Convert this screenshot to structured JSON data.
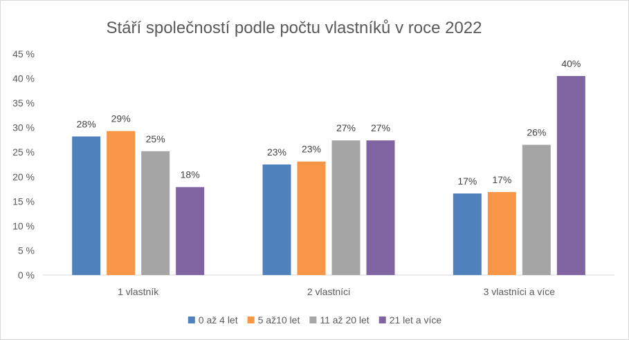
{
  "chart_data": {
    "type": "bar",
    "title": "Stáří společností podle počtu vlastníků v roce 2022",
    "categories": [
      "1 vlastník",
      "2 vlastníci",
      "3 vlastníci a více"
    ],
    "series": [
      {
        "name": "0 až 4 let",
        "color": "#4f81bd",
        "values": [
          28.2,
          22.5,
          16.6
        ],
        "labels": [
          "28%",
          "23%",
          "17%"
        ]
      },
      {
        "name": "5 až10 let",
        "color": "#f79646",
        "values": [
          29.3,
          23.1,
          16.9
        ],
        "labels": [
          "29%",
          "23%",
          "17%"
        ]
      },
      {
        "name": "11 až 20 let",
        "color": "#a5a5a5",
        "values": [
          25.2,
          27.4,
          26.5
        ],
        "labels": [
          "25%",
          "27%",
          "26%"
        ]
      },
      {
        "name": "21 let a více",
        "color": "#8064a2",
        "values": [
          17.9,
          27.4,
          40.5
        ],
        "labels": [
          "18%",
          "27%",
          "40%"
        ]
      }
    ],
    "yticks": [
      "0 %",
      "5 %",
      "10 %",
      "15 %",
      "20 %",
      "25 %",
      "30 %",
      "35 %",
      "40 %",
      "45 %"
    ],
    "ylim": [
      0,
      45
    ],
    "grid": false,
    "legend_position": "bottom"
  }
}
